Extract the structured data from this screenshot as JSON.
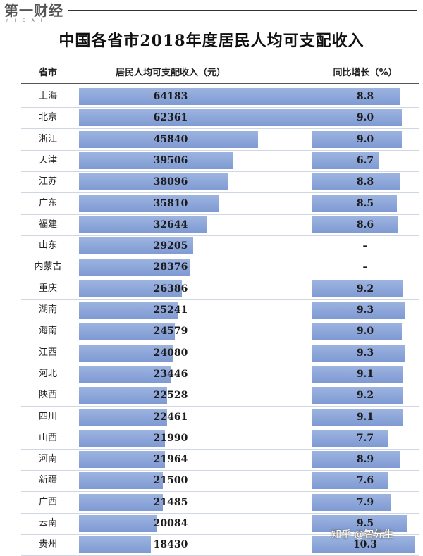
{
  "logo": {
    "main": "第一财经",
    "sub": "YICAI"
  },
  "chart_data": {
    "type": "bar",
    "title": "中国各省市2018年度居民人均可支配收入",
    "column_headers": [
      "省市",
      "居民人均可支配收入（元）",
      "同比增长（%）"
    ],
    "categories": [
      "上海",
      "北京",
      "浙江",
      "天津",
      "江苏",
      "广东",
      "福建",
      "山东",
      "内蒙古",
      "重庆",
      "湖南",
      "海南",
      "江西",
      "河北",
      "陕西",
      "四川",
      "山西",
      "河南",
      "新疆",
      "广西",
      "云南",
      "贵州"
    ],
    "series": [
      {
        "name": "居民人均可支配收入（元）",
        "values": [
          64183,
          62361,
          45840,
          39506,
          38096,
          35810,
          32644,
          29205,
          28376,
          26386,
          25241,
          24579,
          24080,
          23446,
          22528,
          22461,
          21990,
          21964,
          21500,
          21485,
          20084,
          18430
        ]
      },
      {
        "name": "同比增长（%）",
        "values": [
          8.8,
          9.0,
          9.0,
          6.7,
          8.8,
          8.5,
          8.6,
          null,
          null,
          9.2,
          9.3,
          9.0,
          9.3,
          9.1,
          9.2,
          9.1,
          7.7,
          8.9,
          7.6,
          7.9,
          9.5,
          10.3
        ],
        "labels": [
          "8.8",
          "9.0",
          "9.0",
          "6.7",
          "8.8",
          "8.5",
          "8.6",
          "–",
          "–",
          "9.2",
          "9.3",
          "9.0",
          "9.3",
          "9.1",
          "9.2",
          "9.1",
          "7.7",
          "8.9",
          "7.6",
          "7.9",
          "9.5",
          "10.3"
        ]
      }
    ],
    "legend": "none",
    "grid": false
  },
  "watermark": "知乎 @智先生",
  "colors": {
    "bar": "#8ea8dc",
    "row_line": "#cfd6e4"
  }
}
